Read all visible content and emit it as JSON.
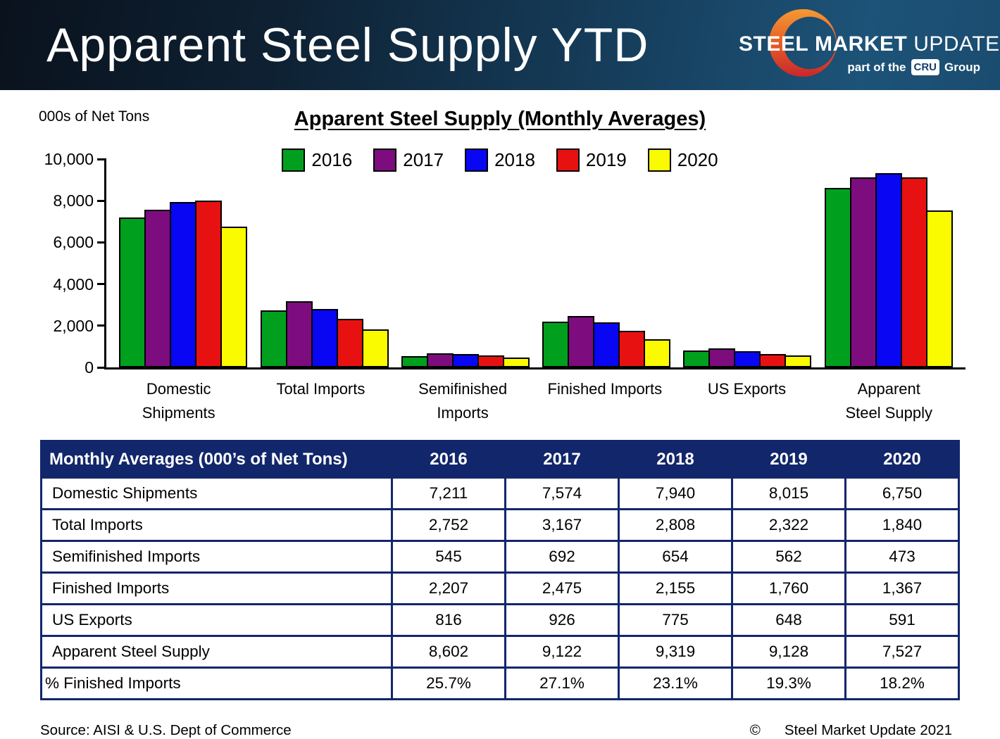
{
  "header": {
    "title": "Apparent Steel Supply YTD",
    "logo": {
      "steel": "STEEL",
      "market": "MARKET",
      "update": "UPDATE",
      "tagline_prefix": "part of the",
      "cru": "CRU",
      "tagline_suffix": "Group"
    }
  },
  "chart_data": {
    "type": "bar",
    "title": "Apparent Steel Supply (Monthly Averages)",
    "units_label": "000s of Net Tons",
    "categories": [
      "Domestic\nShipments",
      "Total Imports",
      "Semifinished\nImports",
      "Finished Imports",
      "US Exports",
      "Apparent\nSteel Supply"
    ],
    "series": [
      {
        "name": "2016",
        "color": "#00A01E",
        "values": [
          7211,
          2752,
          545,
          2207,
          816,
          8602
        ]
      },
      {
        "name": "2017",
        "color": "#7D0C7E",
        "values": [
          7574,
          3167,
          692,
          2475,
          926,
          9122
        ]
      },
      {
        "name": "2018",
        "color": "#0806F2",
        "values": [
          7940,
          2808,
          654,
          2155,
          775,
          9319
        ]
      },
      {
        "name": "2019",
        "color": "#E81111",
        "values": [
          8015,
          2322,
          562,
          1760,
          648,
          9128
        ]
      },
      {
        "name": "2020",
        "color": "#FBFB00",
        "values": [
          6750,
          1840,
          473,
          1367,
          591,
          7527
        ]
      }
    ],
    "ylim": [
      0,
      10000
    ],
    "yticks": [
      {
        "value": 0,
        "label": "0"
      },
      {
        "value": 2000,
        "label": "2,000"
      },
      {
        "value": 4000,
        "label": "4,000"
      },
      {
        "value": 6000,
        "label": "6,000"
      },
      {
        "value": 8000,
        "label": "8,000"
      },
      {
        "value": 10000,
        "label": "10,000"
      }
    ],
    "legend_position": "top",
    "grid": false
  },
  "table": {
    "header_label": "Monthly Averages (000’s of Net Tons)",
    "header_years": [
      "2016",
      "2017",
      "2018",
      "2019",
      "2020"
    ],
    "rows": [
      {
        "label": "Domestic Shipments",
        "values": [
          "7,211",
          "7,574",
          "7,940",
          "8,015",
          "6,750"
        ]
      },
      {
        "label": "Total Imports",
        "values": [
          "2,752",
          "3,167",
          "2,808",
          "2,322",
          "1,840"
        ]
      },
      {
        "label": "Semifinished Imports",
        "values": [
          "545",
          "692",
          "654",
          "562",
          "473"
        ]
      },
      {
        "label": "Finished Imports",
        "values": [
          "2,207",
          "2,475",
          "2,155",
          "1,760",
          "1,367"
        ]
      },
      {
        "label": "US Exports",
        "values": [
          "816",
          "926",
          "775",
          "648",
          "591"
        ]
      },
      {
        "label": "Apparent Steel Supply",
        "values": [
          "8,602",
          "9,122",
          "9,319",
          "9,128",
          "7,527"
        ]
      },
      {
        "label": "% Finished Imports",
        "values": [
          "25.7%",
          "27.1%",
          "23.1%",
          "19.3%",
          "18.2%"
        ]
      }
    ]
  },
  "footer": {
    "source": "Source:  AISI & U.S. Dept of Commerce",
    "copyright_symbol": "©",
    "copyright_text": "Steel Market Update 2021"
  },
  "colors": {
    "navy": "#12266B",
    "header_gradient_dark": "#0a121d",
    "header_gradient_light": "#1d5378",
    "crescent_top": "#F59A33",
    "crescent_bottom": "#C9272B"
  }
}
